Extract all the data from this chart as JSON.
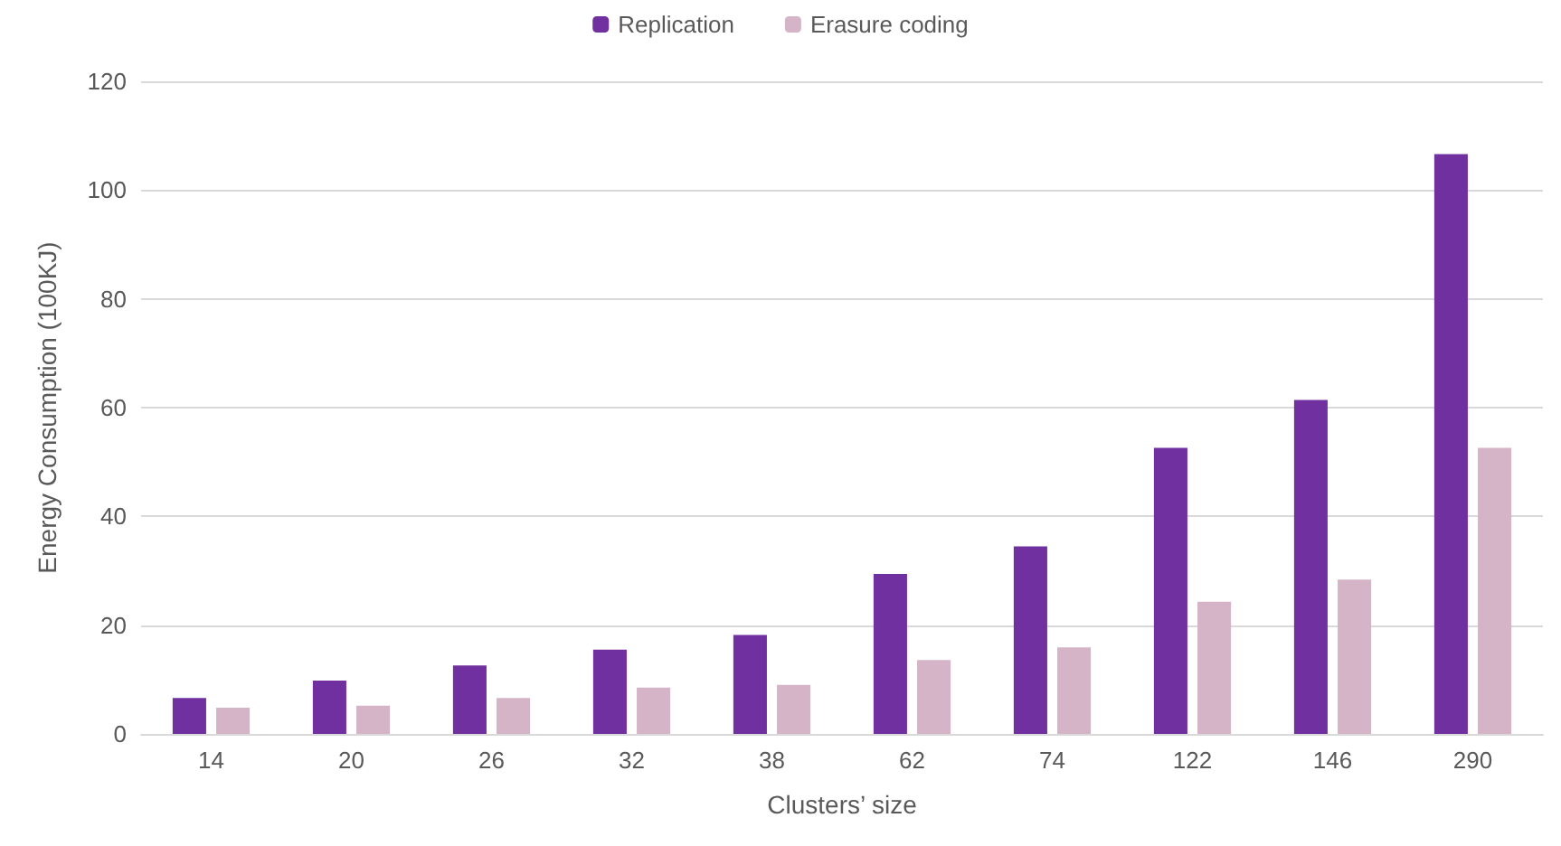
{
  "chart_data": {
    "type": "bar",
    "xlabel": "Clusters’ size",
    "ylabel": "Energy Consumption (100KJ)",
    "categories": [
      "14",
      "20",
      "26",
      "32",
      "38",
      "62",
      "74",
      "122",
      "146",
      "290"
    ],
    "series": [
      {
        "name": "Replication",
        "color": "#7030a0",
        "values": [
          6.6,
          9.8,
          12.6,
          15.5,
          18.2,
          29.4,
          34.5,
          52.6,
          61.4,
          106.6
        ]
      },
      {
        "name": "Erasure coding",
        "color": "#d5b4c8",
        "values": [
          4.8,
          5.2,
          6.6,
          8.5,
          9.0,
          13.6,
          15.9,
          24.3,
          28.4,
          52.6
        ]
      }
    ],
    "ylim": [
      0,
      120
    ],
    "yticks": [
      0,
      20,
      40,
      60,
      80,
      100,
      120
    ],
    "grid": "y",
    "legend": "top"
  }
}
